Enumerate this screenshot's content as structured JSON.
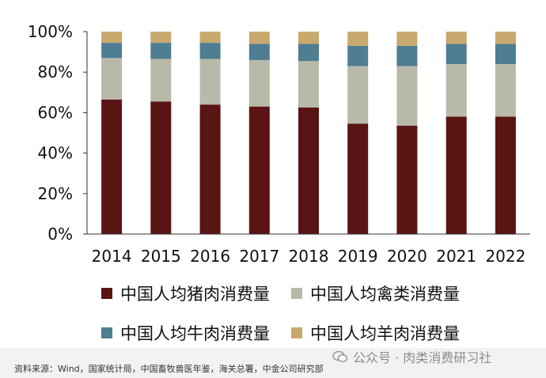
{
  "chart_data": {
    "type": "bar",
    "stacked": true,
    "percent_stacked": true,
    "categories": [
      "2014",
      "2015",
      "2016",
      "2017",
      "2018",
      "2019",
      "2020",
      "2021",
      "2022"
    ],
    "ylim": [
      0,
      100
    ],
    "yticks": [
      "0%",
      "20%",
      "40%",
      "60%",
      "80%",
      "100%"
    ],
    "grid": false,
    "legend_position": "bottom",
    "series": [
      {
        "name": "中国人均猪肉消费量",
        "color": "#5a1414",
        "values": [
          66.5,
          65.5,
          64,
          63,
          62.5,
          54.5,
          53.5,
          58,
          58
        ]
      },
      {
        "name": "中国人均禽类消费量",
        "color": "#b9b9aa",
        "values": [
          20.5,
          21,
          22.5,
          23,
          23,
          28.5,
          29.5,
          26,
          26
        ]
      },
      {
        "name": "中国人均牛肉消费量",
        "color": "#4f7d91",
        "values": [
          7.5,
          8,
          8,
          8,
          8.5,
          10,
          10,
          10,
          10
        ]
      },
      {
        "name": "中国人均羊肉消费量",
        "color": "#c8a96e",
        "values": [
          5.5,
          5.5,
          5.5,
          6,
          6,
          7,
          7,
          6,
          6
        ]
      }
    ]
  },
  "legend": {
    "items": [
      {
        "label": "中国人均猪肉消费量",
        "color": "#5a1414"
      },
      {
        "label": "中国人均禽类消费量",
        "color": "#b9b9aa"
      },
      {
        "label": "中国人均牛肉消费量",
        "color": "#4f7d91"
      },
      {
        "label": "中国人均羊肉消费量",
        "color": "#c8a96e"
      }
    ]
  },
  "source_text": "资料来源：Wind，国家统计局，中国畜牧兽医年鉴，海关总署，中金公司研究部",
  "watermark": {
    "text": "公众号 · 肉类消费研习社",
    "icon": "wechat-icon"
  }
}
